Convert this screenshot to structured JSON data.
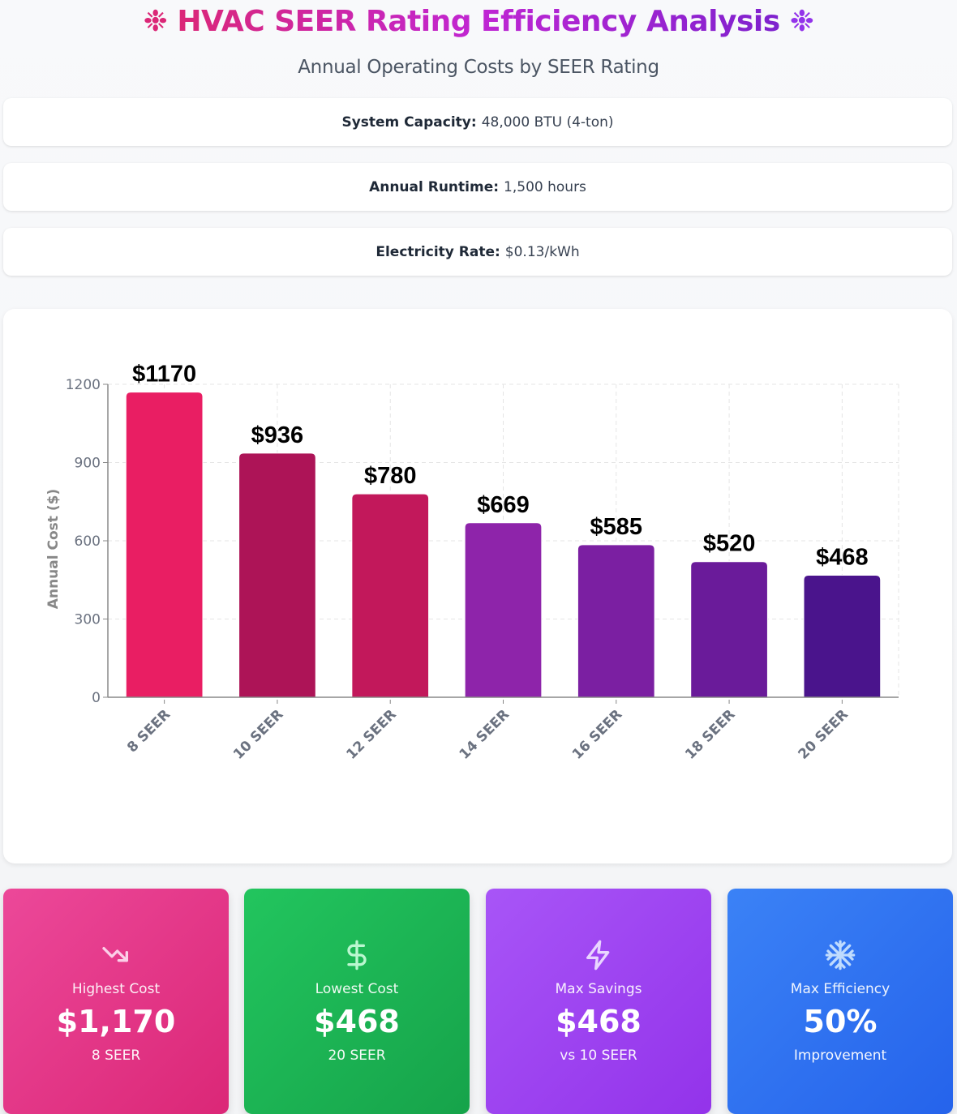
{
  "header": {
    "title": "HVAC SEER Rating Efficiency Analysis",
    "title_icon": "snowflake-icon",
    "subtitle": "Annual Operating Costs by SEER Rating"
  },
  "info": [
    {
      "label": "System Capacity:",
      "value": "48,000 BTU (4-ton)"
    },
    {
      "label": "Annual Runtime:",
      "value": "1,500 hours"
    },
    {
      "label": "Electricity Rate:",
      "value": "$0.13/kWh"
    }
  ],
  "chart_data": {
    "type": "bar",
    "title": "",
    "xlabel": "",
    "ylabel": "Annual Cost ($)",
    "categories": [
      "8 SEER",
      "10 SEER",
      "12 SEER",
      "14 SEER",
      "16 SEER",
      "18 SEER",
      "20 SEER"
    ],
    "values": [
      1170,
      936,
      780,
      669,
      585,
      520,
      468
    ],
    "data_labels": [
      "$1170",
      "$936",
      "$780",
      "$669",
      "$585",
      "$520",
      "$468"
    ],
    "colors": [
      "#e91e63",
      "#ad1457",
      "#c2185b",
      "#8e24aa",
      "#7b1fa2",
      "#6a1b9a",
      "#4a148c"
    ],
    "ylim": [
      0,
      1200
    ],
    "yticks": [
      0,
      300,
      600,
      900,
      1200
    ],
    "grid": true,
    "legend": "none"
  },
  "stats": [
    {
      "icon": "trending-down-icon",
      "label": "Highest Cost",
      "value": "$1,170",
      "sub": "8 SEER",
      "color": "#ec4899"
    },
    {
      "icon": "dollar-icon",
      "label": "Lowest Cost",
      "value": "$468",
      "sub": "20 SEER",
      "color": "#22c55e"
    },
    {
      "icon": "lightning-icon",
      "label": "Max Savings",
      "value": "$468",
      "sub": "vs 10 SEER",
      "color": "#a855f7"
    },
    {
      "icon": "snowflake-icon",
      "label": "Max Efficiency",
      "value": "50%",
      "sub": "Improvement",
      "color": "#3b82f6"
    }
  ]
}
